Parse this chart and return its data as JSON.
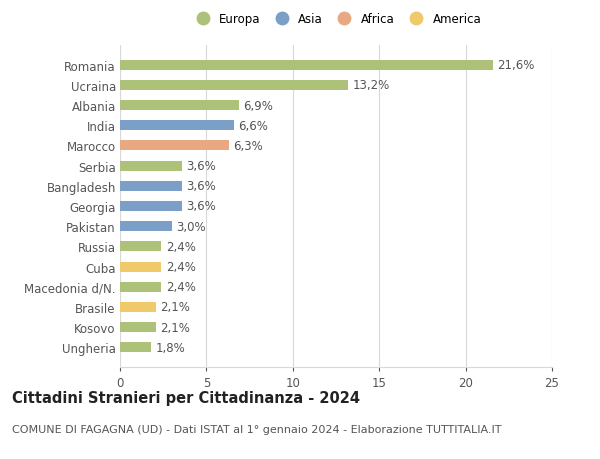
{
  "categories": [
    "Romania",
    "Ucraina",
    "Albania",
    "India",
    "Marocco",
    "Serbia",
    "Bangladesh",
    "Georgia",
    "Pakistan",
    "Russia",
    "Cuba",
    "Macedonia d/N.",
    "Brasile",
    "Kosovo",
    "Ungheria"
  ],
  "values": [
    21.6,
    13.2,
    6.9,
    6.6,
    6.3,
    3.6,
    3.6,
    3.6,
    3.0,
    2.4,
    2.4,
    2.4,
    2.1,
    2.1,
    1.8
  ],
  "labels": [
    "21,6%",
    "13,2%",
    "6,9%",
    "6,6%",
    "6,3%",
    "3,6%",
    "3,6%",
    "3,6%",
    "3,0%",
    "2,4%",
    "2,4%",
    "2,4%",
    "2,1%",
    "2,1%",
    "1,8%"
  ],
  "continents": [
    "Europa",
    "Europa",
    "Europa",
    "Asia",
    "Africa",
    "Europa",
    "Asia",
    "Asia",
    "Asia",
    "Europa",
    "America",
    "Europa",
    "America",
    "Europa",
    "Europa"
  ],
  "continent_colors": {
    "Europa": "#adc178",
    "Asia": "#7b9fc7",
    "Africa": "#e8a882",
    "America": "#f0c96a"
  },
  "legend_items": [
    "Europa",
    "Asia",
    "Africa",
    "America"
  ],
  "title": "Cittadini Stranieri per Cittadinanza - 2024",
  "subtitle": "COMUNE DI FAGAGNA (UD) - Dati ISTAT al 1° gennaio 2024 - Elaborazione TUTTITALIA.IT",
  "xlim": [
    0,
    25
  ],
  "xticks": [
    0,
    5,
    10,
    15,
    20,
    25
  ],
  "background_color": "#ffffff",
  "grid_color": "#d8d8d8",
  "bar_height": 0.5,
  "label_fontsize": 8.5,
  "title_fontsize": 10.5,
  "subtitle_fontsize": 8.0
}
